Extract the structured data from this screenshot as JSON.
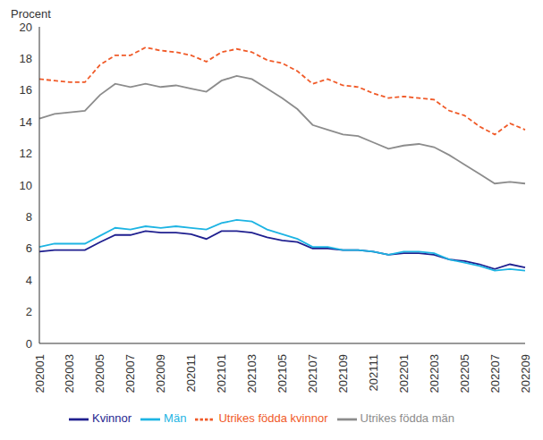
{
  "chart_data": {
    "type": "line",
    "y_label": "Procent",
    "categories": [
      "202001",
      null,
      "202003",
      null,
      "202005",
      null,
      "202007",
      null,
      "202009",
      null,
      "202011",
      null,
      "202101",
      null,
      "202103",
      null,
      "202105",
      null,
      "202107",
      null,
      "202109",
      null,
      "202111",
      null,
      "202201",
      null,
      "202203",
      null,
      "202205",
      null,
      "202207",
      null,
      "202209"
    ],
    "series": [
      {
        "name": "Kvinnor",
        "color": "#1f1f8f",
        "line_style": "solid",
        "values": [
          5.8,
          5.9,
          5.9,
          5.9,
          6.4,
          6.85,
          6.85,
          7.1,
          7.0,
          7.0,
          6.9,
          6.6,
          7.1,
          7.1,
          7.0,
          6.7,
          6.5,
          6.4,
          6.0,
          6.0,
          5.9,
          5.9,
          5.8,
          5.6,
          5.7,
          5.7,
          5.6,
          5.3,
          5.2,
          5.0,
          4.7,
          5.0,
          4.8
        ]
      },
      {
        "name": "Män",
        "color": "#1db4e3",
        "line_style": "solid",
        "values": [
          6.1,
          6.3,
          6.3,
          6.3,
          6.8,
          7.3,
          7.2,
          7.4,
          7.3,
          7.4,
          7.3,
          7.2,
          7.6,
          7.8,
          7.7,
          7.2,
          6.9,
          6.6,
          6.1,
          6.1,
          5.9,
          5.9,
          5.8,
          5.6,
          5.8,
          5.8,
          5.7,
          5.3,
          5.1,
          4.9,
          4.6,
          4.7,
          4.6
        ]
      },
      {
        "name": "Utrikes födda kvinnor",
        "color": "#f05a28",
        "line_style": "dashed",
        "values": [
          16.7,
          16.6,
          16.5,
          16.5,
          17.6,
          18.2,
          18.2,
          18.7,
          18.5,
          18.4,
          18.2,
          17.8,
          18.4,
          18.6,
          18.4,
          17.9,
          17.7,
          17.2,
          16.4,
          16.7,
          16.3,
          16.2,
          15.8,
          15.5,
          15.6,
          15.5,
          15.4,
          14.7,
          14.4,
          13.7,
          13.2,
          13.9,
          13.5
        ]
      },
      {
        "name": "Utrikes födda män",
        "color": "#8c8c8c",
        "line_style": "solid",
        "values": [
          14.2,
          14.5,
          14.6,
          14.7,
          15.7,
          16.4,
          16.2,
          16.4,
          16.2,
          16.3,
          16.1,
          15.9,
          16.6,
          16.9,
          16.7,
          16.1,
          15.5,
          14.8,
          13.8,
          13.5,
          13.2,
          13.1,
          12.7,
          12.3,
          12.5,
          12.6,
          12.4,
          11.9,
          11.3,
          10.7,
          10.1,
          10.2,
          10.1
        ]
      }
    ],
    "ylim": [
      0,
      20
    ],
    "yticks": [
      0,
      2,
      4,
      6,
      8,
      10,
      12,
      14,
      16,
      18,
      20
    ],
    "grid": false,
    "legend": "bottom"
  }
}
